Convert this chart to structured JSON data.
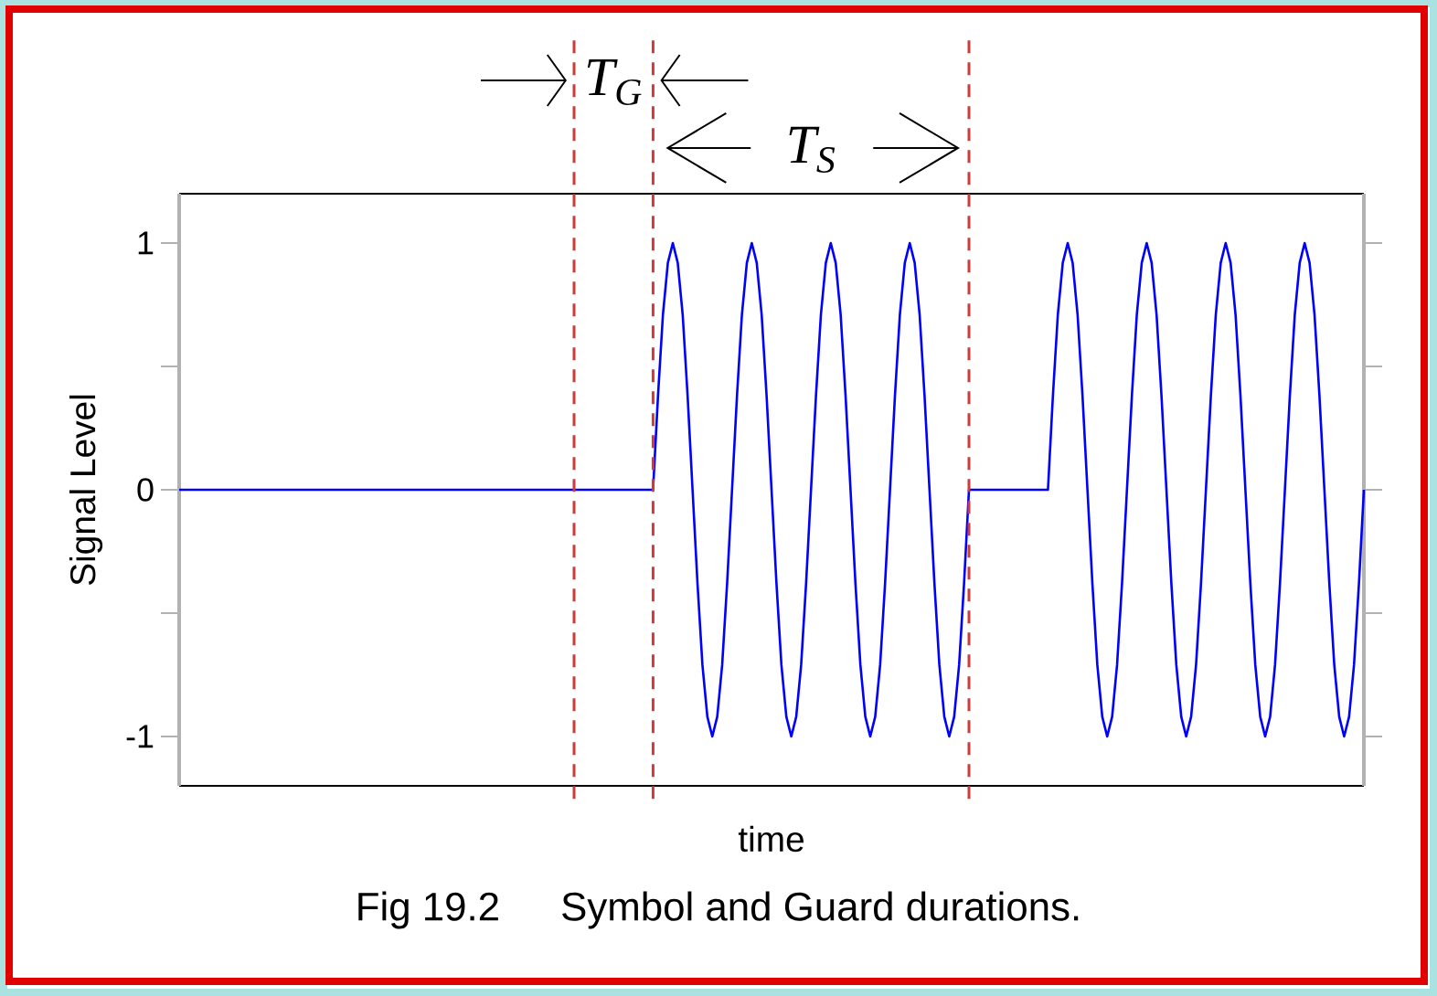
{
  "chart_data": {
    "type": "line",
    "xlabel": "time",
    "ylabel": "Signal Level",
    "categories": [
      null,
      null,
      null,
      null,
      null,
      null,
      null,
      null,
      null,
      null,
      null,
      null,
      null,
      null,
      null,
      null,
      null,
      null,
      null,
      null,
      null,
      null,
      null,
      null,
      null,
      null,
      null,
      null,
      null,
      null,
      null,
      null,
      null,
      null,
      null,
      null,
      null,
      null,
      null,
      null,
      null,
      null,
      null,
      null,
      null,
      null,
      null,
      null,
      null,
      null,
      null,
      null,
      null,
      null,
      null,
      null,
      null,
      null,
      null,
      null,
      null,
      null,
      null,
      null,
      null,
      null,
      null,
      null,
      null,
      null,
      null,
      null,
      null,
      null,
      null,
      null,
      null,
      null,
      null,
      null,
      null,
      null,
      null,
      null,
      null,
      null,
      null,
      null,
      null,
      null,
      null,
      null,
      null,
      null,
      null,
      null,
      null,
      null,
      null,
      null,
      null,
      null,
      null,
      null,
      null,
      null,
      null,
      null,
      null,
      null,
      null,
      null,
      null,
      null,
      null,
      null,
      null,
      null,
      null,
      null,
      null,
      null,
      null,
      null,
      null,
      null,
      null,
      null,
      null,
      null,
      null,
      null,
      null,
      null,
      null,
      null,
      null,
      null,
      null,
      null,
      null,
      null,
      null,
      null,
      null,
      null,
      null,
      null,
      null,
      null,
      null,
      null,
      null,
      null,
      null,
      null,
      null,
      null,
      null,
      null,
      null,
      null,
      null,
      null,
      null,
      null,
      null,
      null,
      null,
      null,
      null,
      null,
      null,
      null,
      null,
      null,
      null,
      null,
      null,
      null,
      null,
      null,
      null,
      null,
      null,
      null,
      null,
      null,
      null,
      null,
      null,
      null,
      null,
      null,
      null,
      null,
      null,
      null,
      null,
      null,
      null,
      null,
      null,
      null,
      null,
      null,
      null,
      null,
      null,
      null,
      null,
      null,
      null,
      null,
      null,
      null,
      null,
      null,
      null,
      null,
      null,
      null,
      null,
      null,
      null,
      null,
      null,
      null,
      null,
      null,
      null,
      null,
      null,
      null,
      null,
      null,
      null,
      null,
      null,
      null,
      null
    ],
    "series": [
      {
        "color": "#0000ff",
        "values": [
          0,
          0,
          0,
          0,
          0,
          0,
          0,
          0,
          0,
          0,
          0,
          0,
          0,
          0,
          0,
          0,
          0,
          0,
          0,
          0,
          0,
          0,
          0,
          0,
          0,
          0,
          0,
          0,
          0,
          0,
          0,
          0,
          0,
          0,
          0,
          0,
          0,
          0,
          0,
          0,
          0,
          0,
          0,
          0,
          0,
          0,
          0,
          0,
          0,
          0,
          0,
          0,
          0,
          0,
          0,
          0,
          0,
          0,
          0,
          0,
          0,
          0,
          0,
          0,
          0,
          0,
          0,
          0,
          0,
          0,
          0,
          0,
          0,
          0,
          0,
          0,
          0,
          0,
          0,
          0,
          0,
          0,
          0,
          0,
          0,
          0,
          0,
          0,
          0,
          0,
          0,
          0,
          0,
          0,
          0,
          0,
          0,
          0.38,
          0.71,
          0.92,
          1,
          0.92,
          0.71,
          0.38,
          0,
          -0.38,
          -0.71,
          -0.92,
          -1,
          -0.92,
          -0.71,
          -0.38,
          0,
          0.38,
          0.71,
          0.92,
          1,
          0.92,
          0.71,
          0.38,
          0,
          -0.38,
          -0.71,
          -0.92,
          -1,
          -0.92,
          -0.71,
          -0.38,
          0,
          0.38,
          0.71,
          0.92,
          1,
          0.92,
          0.71,
          0.38,
          0,
          -0.38,
          -0.71,
          -0.92,
          -1,
          -0.92,
          -0.71,
          -0.38,
          0,
          0.38,
          0.71,
          0.92,
          1,
          0.92,
          0.71,
          0.38,
          0,
          -0.38,
          -0.71,
          -0.92,
          -1,
          -0.92,
          -0.71,
          -0.38,
          0,
          0,
          0,
          0,
          0,
          0,
          0,
          0,
          0,
          0,
          0,
          0,
          0,
          0,
          0,
          0,
          0,
          0.38,
          0.71,
          0.92,
          1,
          0.92,
          0.71,
          0.38,
          0,
          -0.38,
          -0.71,
          -0.92,
          -1,
          -0.92,
          -0.71,
          -0.38,
          0,
          0.38,
          0.71,
          0.92,
          1,
          0.92,
          0.71,
          0.38,
          0,
          -0.38,
          -0.71,
          -0.92,
          -1,
          -0.92,
          -0.71,
          -0.38,
          0,
          0.38,
          0.71,
          0.92,
          1,
          0.92,
          0.71,
          0.38,
          0,
          -0.38,
          -0.71,
          -0.92,
          -1,
          -0.92,
          -0.71,
          -0.38,
          0,
          0.38,
          0.71,
          0.92,
          1,
          0.92,
          0.71,
          0.38,
          0,
          -0.38,
          -0.71,
          -0.92,
          -1,
          -0.92,
          -0.71,
          -0.38,
          0
        ]
      }
    ],
    "ylim": [
      -1.2,
      1.2
    ],
    "yticks": [
      -1,
      {
        "value": -0.5,
        "label": null
      },
      0,
      {
        "value": 0.5,
        "label": null
      },
      1
    ],
    "annotations": [
      "T$_{G}$",
      "T$_{S}$",
      "Fig 19.2",
      "Symbol and Guard durations."
    ]
  }
}
